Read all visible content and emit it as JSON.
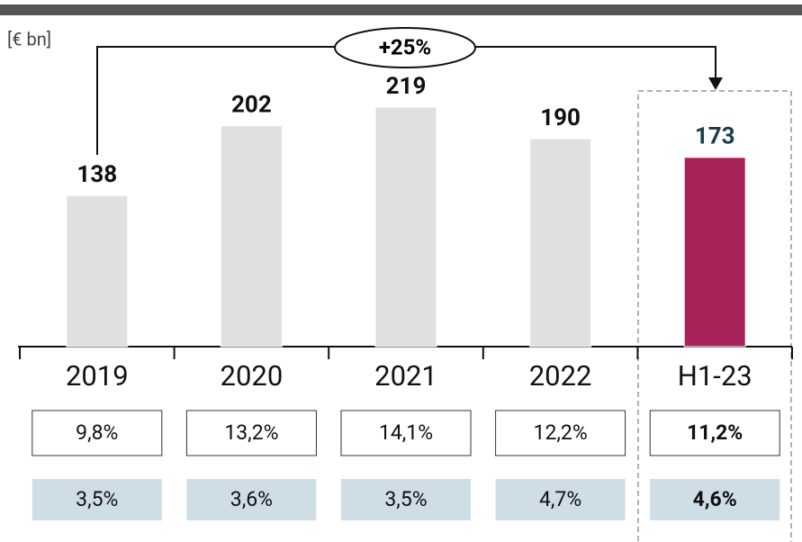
{
  "chart_data": {
    "type": "bar",
    "unit_label": "[€ bn]",
    "annotation": "+25%",
    "categories": [
      "2019",
      "2020",
      "2021",
      "2022",
      "H1-23"
    ],
    "values": [
      138,
      202,
      219,
      190,
      173
    ],
    "colors": [
      "#e0e0e0",
      "#e0e0e0",
      "#e0e0e0",
      "#e0e0e0",
      "#a8235a"
    ],
    "label_colors": [
      "#111111",
      "#111111",
      "#111111",
      "#111111",
      "#1f3b4d"
    ],
    "rows": [
      [
        "9,8%",
        "13,2%",
        "14,1%",
        "12,2%",
        "11,2%"
      ],
      [
        "3,5%",
        "3,6%",
        "3,5%",
        "4,7%",
        "4,6%"
      ]
    ]
  }
}
